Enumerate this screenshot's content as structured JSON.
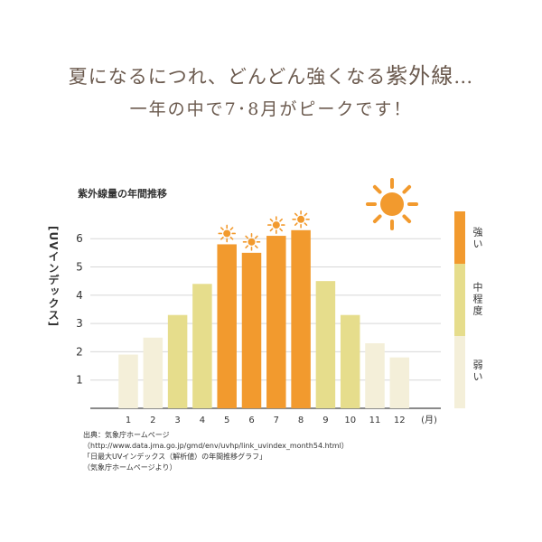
{
  "headline": {
    "line1_prefix": "夏になるにつれ、どんどん強くなる",
    "line1_emphasis": "紫外線",
    "line1_suffix": "…",
    "line2": "一年の中で7･8月がピークです！"
  },
  "chart_data": {
    "type": "bar",
    "title": "紫外線量の年間推移",
    "ylabel": "[UVインデックス]",
    "x_unit": "(月)",
    "categories": [
      "1",
      "2",
      "3",
      "4",
      "5",
      "6",
      "7",
      "8",
      "9",
      "10",
      "11",
      "12"
    ],
    "values": [
      1.9,
      2.5,
      3.3,
      4.4,
      5.8,
      5.5,
      6.1,
      6.3,
      4.5,
      3.3,
      2.3,
      1.8
    ],
    "yticks": [
      "1",
      "2",
      "3",
      "4",
      "5",
      "6"
    ],
    "ylim": [
      0,
      6.5
    ],
    "grid": true,
    "peak_months": [
      "5",
      "6",
      "7",
      "8"
    ],
    "legend": [
      {
        "label": "強い",
        "color": "#f29a2e"
      },
      {
        "label": "中程度",
        "color": "#ede28f"
      },
      {
        "label": "弱い",
        "color": "#f4efd9"
      }
    ],
    "colors": {
      "strong": "#f29a2e",
      "moderate": "#e6dd8c",
      "weak": "#f4efd9",
      "sun": "#f29a2e"
    }
  },
  "source": {
    "line1": "出典：気象庁ホームページ",
    "line2": "（http://www.data.jma.go.jp/gmd/env/uvhp/link_uvindex_month54.html）",
    "line3": "「日最大UVインデックス（解析値）の年間推移グラフ」",
    "line4": "（気象庁ホームページより）"
  }
}
